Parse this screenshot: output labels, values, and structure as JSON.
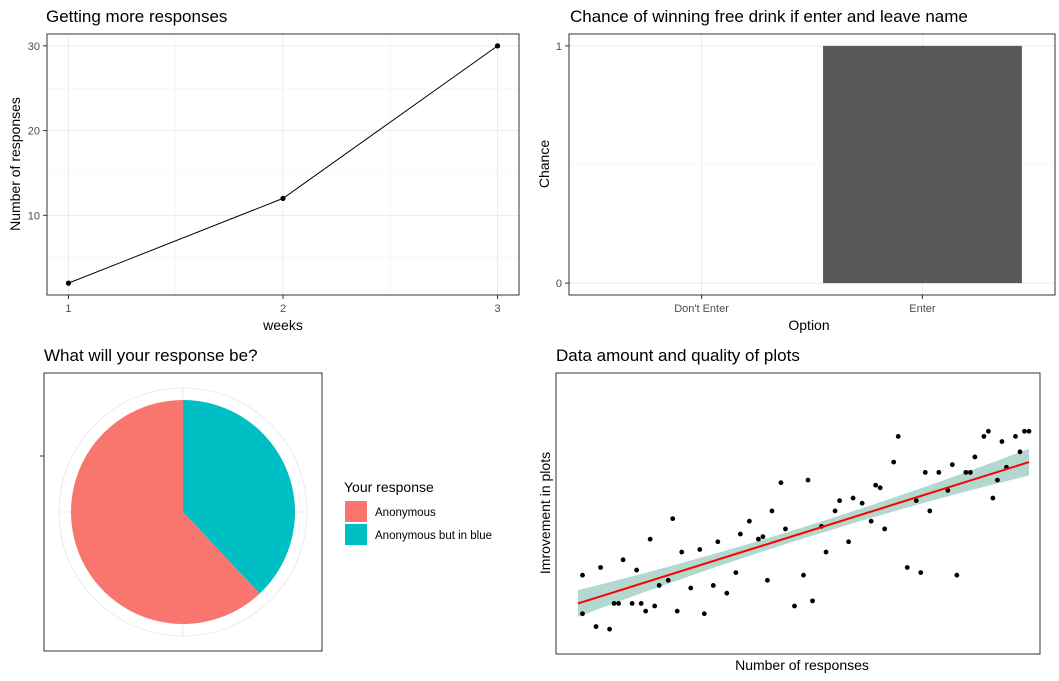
{
  "chart_data": [
    {
      "type": "line",
      "title": "Getting more responses",
      "xlabel": "weeks",
      "ylabel": "Number of responses",
      "x": [
        1,
        2,
        3
      ],
      "y": [
        2,
        12,
        30
      ],
      "xlim": [
        0.9,
        3.1
      ],
      "ylim": [
        0.6,
        31.4
      ],
      "xticks": [
        1,
        2,
        3
      ],
      "yticks": [
        10,
        20,
        30
      ],
      "grid": true
    },
    {
      "type": "bar",
      "title": "Chance of winning free drink if enter and leave name",
      "xlabel": "Option",
      "ylabel": "Chance",
      "categories": [
        "Don't Enter",
        "Enter"
      ],
      "values": [
        0,
        1
      ],
      "ylim": [
        -0.05,
        1.05
      ],
      "yticks": [
        0,
        1
      ],
      "bar_color": "#595959",
      "grid": true
    },
    {
      "type": "pie",
      "title": "What will your response be?",
      "legend_title": "Your response",
      "labels": [
        "Anonymous",
        "Anonymous but in blue"
      ],
      "values": [
        62,
        38
      ],
      "colors": [
        "#F8766D",
        "#00BFC4"
      ],
      "legend_position": "right"
    },
    {
      "type": "scatter",
      "title": "Data amount and quality of plots",
      "xlabel": "Number of responses",
      "ylabel": "Imrovement in plots",
      "axis_ticks": false,
      "xlim": [
        0,
        100
      ],
      "ylim": [
        -5,
        5
      ],
      "trend_line": {
        "method": "linear",
        "intercept": -3.5,
        "slope": 0.055,
        "color": "#FF0000",
        "band_color": "#B2D8D0"
      },
      "x": [
        1,
        1,
        4,
        5,
        7,
        8,
        9,
        10,
        12,
        13,
        14,
        15,
        16,
        17,
        18,
        20,
        21,
        22,
        23,
        25,
        27,
        28,
        30,
        31,
        33,
        35,
        36,
        38,
        40,
        41,
        42,
        43,
        45,
        46,
        48,
        50,
        51,
        52,
        54,
        55,
        57,
        58,
        60,
        61,
        63,
        65,
        66,
        67,
        68,
        70,
        71,
        73,
        75,
        76,
        77,
        78,
        80,
        82,
        83,
        84,
        86,
        87,
        88,
        90,
        91,
        92,
        93,
        94,
        95,
        97,
        98,
        99,
        100
      ],
      "y": [
        -2.4,
        -3.9,
        -4.4,
        -2.1,
        -4.5,
        -3.5,
        -3.5,
        -1.8,
        -3.5,
        -2.2,
        -3.5,
        -3.8,
        -1.0,
        -3.6,
        -2.8,
        -2.6,
        -0.2,
        -3.8,
        -1.5,
        -2.9,
        -1.4,
        -3.9,
        -2.8,
        -1.1,
        -3.1,
        -2.3,
        -0.8,
        -0.3,
        -1.0,
        -0.9,
        -2.6,
        0.1,
        1.2,
        -0.6,
        -3.6,
        -2.4,
        1.3,
        -3.4,
        -0.5,
        -1.5,
        0.1,
        0.5,
        -1.1,
        0.6,
        0.4,
        -0.3,
        1.1,
        1.0,
        -0.6,
        2.0,
        3.0,
        -2.1,
        0.5,
        -2.3,
        1.6,
        0.1,
        1.6,
        0.9,
        1.9,
        -2.4,
        1.6,
        1.6,
        2.2,
        3.0,
        3.2,
        0.6,
        1.3,
        2.8,
        1.8,
        3.0,
        2.4,
        3.2,
        3.2
      ]
    }
  ]
}
